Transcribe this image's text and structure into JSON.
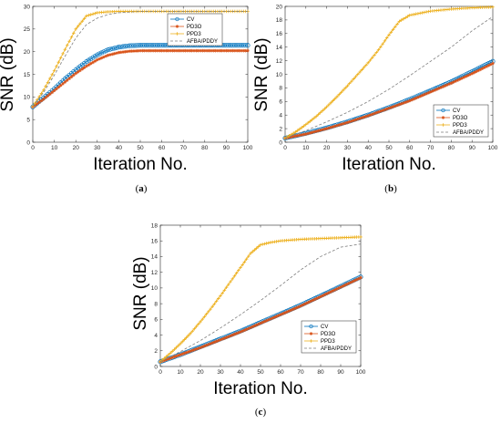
{
  "chart_data": [
    {
      "type": "line",
      "caption": "(a)",
      "xlabel": "Iteration No.",
      "ylabel": "SNR (dB)",
      "xlim": [
        0,
        100
      ],
      "ylim": [
        0,
        30
      ],
      "xticks": [
        "0",
        "10",
        "20",
        "30",
        "40",
        "50",
        "60",
        "70",
        "80",
        "90",
        "100"
      ],
      "yticks": [
        "0",
        "5",
        "10",
        "15",
        "20",
        "25",
        "30"
      ],
      "legend_position": "top-right",
      "series": [
        {
          "name": "CV",
          "color": "#0072BD",
          "marker": "circle",
          "x": [
            0,
            5,
            10,
            15,
            20,
            25,
            30,
            35,
            40,
            45,
            50,
            60,
            70,
            80,
            90,
            100
          ],
          "y": [
            7.8,
            9.8,
            11.8,
            14.0,
            16.0,
            17.8,
            19.3,
            20.4,
            21.0,
            21.3,
            21.4,
            21.4,
            21.4,
            21.4,
            21.4,
            21.4
          ]
        },
        {
          "name": "PD3O",
          "color": "#D95319",
          "marker": "asterisk",
          "x": [
            0,
            5,
            10,
            15,
            20,
            25,
            30,
            35,
            40,
            45,
            50,
            60,
            70,
            80,
            90,
            100
          ],
          "y": [
            7.8,
            9.5,
            11.4,
            13.3,
            15.2,
            16.8,
            18.2,
            19.2,
            19.8,
            20.1,
            20.2,
            20.2,
            20.2,
            20.2,
            20.2,
            20.2
          ]
        },
        {
          "name": "PPD3",
          "color": "#EDB120",
          "marker": "plus",
          "x": [
            0,
            5,
            10,
            15,
            20,
            25,
            30,
            35,
            40,
            50,
            60,
            70,
            80,
            90,
            100
          ],
          "y": [
            7.9,
            11.5,
            15.8,
            20.5,
            25.0,
            27.9,
            28.6,
            28.8,
            28.9,
            28.9,
            28.9,
            28.9,
            28.9,
            28.9,
            28.9
          ]
        },
        {
          "name": "AFBA/PDDY",
          "color": "#7F7F7F",
          "marker": "none",
          "dash": "dashed",
          "x": [
            0,
            5,
            10,
            15,
            20,
            25,
            30,
            35,
            40,
            50,
            60,
            70,
            80,
            90,
            100
          ],
          "y": [
            7.9,
            11.0,
            14.8,
            19.0,
            23.0,
            26.0,
            27.4,
            28.2,
            28.6,
            28.9,
            28.9,
            28.9,
            28.9,
            28.9,
            28.9
          ]
        }
      ]
    },
    {
      "type": "line",
      "caption": "(b)",
      "xlabel": "Iteration No.",
      "ylabel": "SNR (dB)",
      "xlim": [
        0,
        100
      ],
      "ylim": [
        0,
        20
      ],
      "xticks": [
        "0",
        "10",
        "20",
        "30",
        "40",
        "50",
        "60",
        "70",
        "80",
        "90",
        "100"
      ],
      "yticks": [
        "0",
        "2",
        "4",
        "6",
        "8",
        "10",
        "12",
        "14",
        "16",
        "18",
        "20"
      ],
      "legend_position": "bottom-right",
      "series": [
        {
          "name": "CV",
          "color": "#0072BD",
          "marker": "circle",
          "x": [
            0,
            10,
            20,
            30,
            40,
            50,
            60,
            70,
            80,
            90,
            100
          ],
          "y": [
            0.6,
            1.3,
            2.1,
            3.0,
            4.0,
            5.1,
            6.3,
            7.6,
            8.9,
            10.4,
            11.9
          ]
        },
        {
          "name": "PD3O",
          "color": "#D95319",
          "marker": "asterisk",
          "x": [
            0,
            10,
            20,
            30,
            40,
            50,
            60,
            70,
            80,
            90,
            100
          ],
          "y": [
            0.6,
            1.2,
            2.0,
            2.9,
            3.9,
            5.0,
            6.1,
            7.4,
            8.7,
            10.1,
            11.6
          ]
        },
        {
          "name": "PPD3",
          "color": "#EDB120",
          "marker": "plus",
          "x": [
            0,
            5,
            10,
            15,
            20,
            25,
            30,
            35,
            40,
            45,
            50,
            55,
            60,
            70,
            80,
            90,
            100
          ],
          "y": [
            0.6,
            1.5,
            2.6,
            3.8,
            5.2,
            6.7,
            8.3,
            10.0,
            11.7,
            13.6,
            15.8,
            17.8,
            18.7,
            19.3,
            19.6,
            19.8,
            19.9
          ]
        },
        {
          "name": "AFBA/PDDY",
          "color": "#7F7F7F",
          "marker": "none",
          "dash": "dashed",
          "x": [
            0,
            10,
            20,
            30,
            40,
            50,
            60,
            70,
            80,
            90,
            100
          ],
          "y": [
            0.6,
            1.7,
            3.0,
            4.4,
            6.0,
            7.8,
            9.8,
            11.9,
            14.0,
            16.4,
            18.5
          ]
        }
      ]
    },
    {
      "type": "line",
      "caption": "(c)",
      "xlabel": "Iteration No.",
      "ylabel": "SNR (dB)",
      "xlim": [
        0,
        100
      ],
      "ylim": [
        0,
        18
      ],
      "xticks": [
        "0",
        "10",
        "20",
        "30",
        "40",
        "50",
        "60",
        "70",
        "80",
        "90",
        "100"
      ],
      "yticks": [
        "0",
        "2",
        "4",
        "6",
        "8",
        "10",
        "12",
        "14",
        "16",
        "18"
      ],
      "legend_position": "bottom-right",
      "series": [
        {
          "name": "CV",
          "color": "#0072BD",
          "marker": "circle",
          "x": [
            0,
            10,
            20,
            30,
            40,
            50,
            60,
            70,
            80,
            90,
            100
          ],
          "y": [
            0.6,
            1.5,
            2.5,
            3.5,
            4.5,
            5.6,
            6.7,
            7.8,
            9.0,
            10.2,
            11.4
          ]
        },
        {
          "name": "PD3O",
          "color": "#D95319",
          "marker": "asterisk",
          "x": [
            0,
            10,
            20,
            30,
            40,
            50,
            60,
            70,
            80,
            90,
            100
          ],
          "y": [
            0.6,
            1.5,
            2.4,
            3.4,
            4.4,
            5.5,
            6.6,
            7.7,
            8.9,
            10.1,
            11.3
          ]
        },
        {
          "name": "PPD3",
          "color": "#EDB120",
          "marker": "plus",
          "x": [
            0,
            5,
            10,
            15,
            20,
            25,
            30,
            35,
            40,
            45,
            50,
            55,
            60,
            70,
            80,
            90,
            100
          ],
          "y": [
            0.6,
            1.7,
            2.9,
            4.2,
            5.7,
            7.3,
            9.0,
            10.8,
            12.6,
            14.4,
            15.5,
            15.8,
            16.0,
            16.2,
            16.3,
            16.4,
            16.5
          ]
        },
        {
          "name": "AFBA/PDDY",
          "color": "#7F7F7F",
          "marker": "none",
          "dash": "dashed",
          "x": [
            0,
            10,
            20,
            30,
            40,
            50,
            60,
            70,
            80,
            90,
            100
          ],
          "y": [
            0.6,
            1.9,
            3.3,
            4.9,
            6.6,
            8.4,
            10.3,
            12.3,
            14.0,
            15.2,
            15.6
          ]
        }
      ]
    }
  ]
}
